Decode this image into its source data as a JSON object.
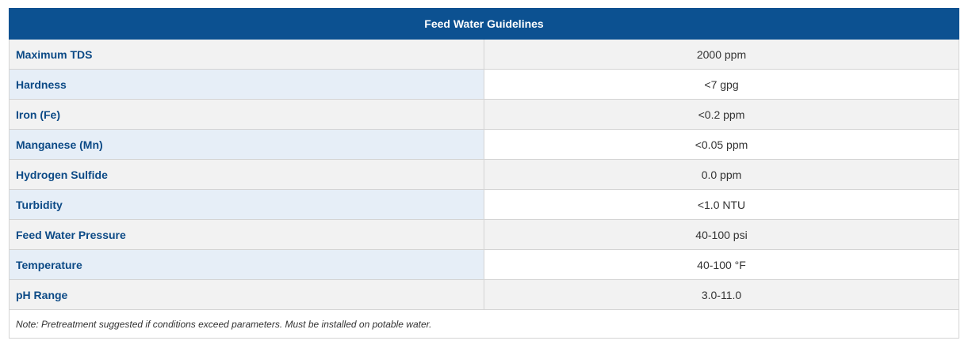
{
  "table": {
    "title": "Feed Water Guidelines",
    "rows": [
      [
        "Maximum TDS",
        "2000 ppm"
      ],
      [
        "Hardness",
        "<7 gpg"
      ],
      [
        "Iron (Fe)",
        "<0.2 ppm"
      ],
      [
        "Manganese (Mn)",
        "<0.05 ppm"
      ],
      [
        "Hydrogen Sulfide",
        "0.0 ppm"
      ],
      [
        "Turbidity",
        "<1.0 NTU"
      ],
      [
        "Feed Water Pressure",
        "40-100 psi"
      ],
      [
        "Temperature",
        "40-100 °F"
      ],
      [
        "pH Range",
        "3.0-11.0"
      ]
    ],
    "note": "Note: Pretreatment suggested if conditions exceed parameters. Must be installed on potable water."
  }
}
